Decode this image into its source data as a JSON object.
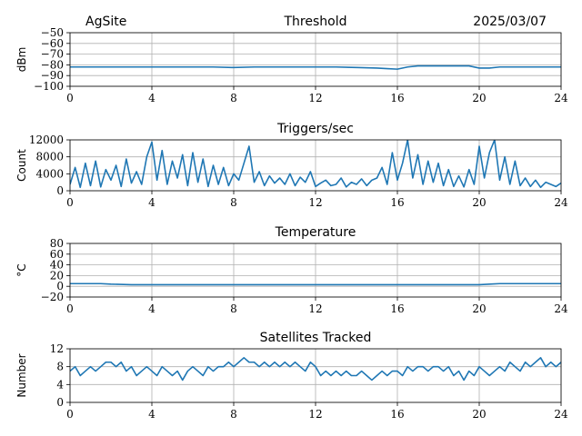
{
  "header": {
    "site": "AgSite",
    "date": "2025/03/07"
  },
  "style": {
    "series_color": "#1f77b4",
    "grid_color": "#b0b0b0"
  },
  "chart_data": [
    {
      "id": "threshold",
      "type": "line",
      "title": "Threshold",
      "ylabel": "dBm",
      "xlim": [
        0,
        24
      ],
      "ylim": [
        -100,
        -50
      ],
      "xticks": [
        0,
        4,
        8,
        12,
        16,
        20,
        24
      ],
      "yticks": [
        -100,
        -90,
        -80,
        -70,
        -60,
        -50
      ],
      "ytick_labels": [
        "−100",
        "−90",
        "−80",
        "−70",
        "−60",
        "−50"
      ],
      "grid": true,
      "x": [
        0,
        1,
        2,
        3,
        4,
        5,
        6,
        7,
        8,
        9,
        10,
        11,
        12,
        13,
        14,
        15,
        15.5,
        16,
        16.5,
        17,
        18,
        19,
        19.5,
        20,
        20.5,
        21,
        22,
        23,
        24
      ],
      "y": [
        -82,
        -82,
        -82,
        -82,
        -82,
        -82,
        -82,
        -82,
        -82.5,
        -82,
        -82,
        -82,
        -82,
        -82,
        -82.5,
        -83,
        -83.5,
        -84,
        -82,
        -81,
        -81,
        -81,
        -81,
        -83,
        -83,
        -82,
        -82,
        -82,
        -82
      ]
    },
    {
      "id": "triggers",
      "type": "line",
      "title": "Triggers/sec",
      "ylabel": "Count",
      "xlim": [
        0,
        24
      ],
      "ylim": [
        0,
        12000
      ],
      "xticks": [
        0,
        4,
        8,
        12,
        16,
        20,
        24
      ],
      "yticks": [
        0,
        4000,
        8000,
        12000
      ],
      "ytick_labels": [
        "0",
        "4000",
        "8000",
        "12000"
      ],
      "grid": true,
      "x": [
        0,
        0.25,
        0.5,
        0.75,
        1,
        1.25,
        1.5,
        1.75,
        2,
        2.25,
        2.5,
        2.75,
        3,
        3.25,
        3.5,
        3.75,
        4,
        4.25,
        4.5,
        4.75,
        5,
        5.25,
        5.5,
        5.75,
        6,
        6.25,
        6.5,
        6.75,
        7,
        7.25,
        7.5,
        7.75,
        8,
        8.25,
        8.5,
        8.75,
        9,
        9.25,
        9.5,
        9.75,
        10,
        10.25,
        10.5,
        10.75,
        11,
        11.25,
        11.5,
        11.75,
        12,
        12.25,
        12.5,
        12.75,
        13,
        13.25,
        13.5,
        13.75,
        14,
        14.25,
        14.5,
        14.75,
        15,
        15.25,
        15.5,
        15.75,
        16,
        16.25,
        16.5,
        16.75,
        17,
        17.25,
        17.5,
        17.75,
        18,
        18.25,
        18.5,
        18.75,
        19,
        19.25,
        19.5,
        19.75,
        20,
        20.25,
        20.5,
        20.75,
        21,
        21.25,
        21.5,
        21.75,
        22,
        22.25,
        22.5,
        22.75,
        23,
        23.25,
        23.5,
        23.75,
        24
      ],
      "y": [
        1500,
        5500,
        800,
        6500,
        1200,
        7000,
        900,
        5000,
        2500,
        6000,
        1000,
        7500,
        1800,
        4500,
        1500,
        8000,
        11500,
        2500,
        9500,
        1500,
        7000,
        3000,
        8500,
        1200,
        9000,
        2000,
        7500,
        1000,
        6000,
        1500,
        5500,
        1200,
        4000,
        2500,
        6500,
        10500,
        2000,
        4500,
        1200,
        3500,
        1800,
        3000,
        1500,
        4000,
        1200,
        3200,
        2000,
        4500,
        1000,
        1800,
        2500,
        1200,
        1500,
        3000,
        900,
        2000,
        1500,
        2800,
        1200,
        2500,
        3000,
        5500,
        1500,
        9000,
        2500,
        6500,
        12000,
        3000,
        8500,
        1500,
        7000,
        2000,
        6500,
        1200,
        5000,
        1000,
        3500,
        900,
        5000,
        1500,
        10500,
        3000,
        9000,
        12000,
        2500,
        8000,
        1500,
        7000,
        1200,
        3000,
        1000,
        2500,
        800,
        2000,
        1500,
        1000,
        1800
      ]
    },
    {
      "id": "temperature",
      "type": "line",
      "title": "Temperature",
      "ylabel": "°C",
      "xlim": [
        0,
        24
      ],
      "ylim": [
        -20,
        80
      ],
      "xticks": [
        0,
        4,
        8,
        12,
        16,
        20,
        24
      ],
      "yticks": [
        -20,
        0,
        20,
        40,
        60,
        80
      ],
      "ytick_labels": [
        "−20",
        "0",
        "20",
        "40",
        "60",
        "80"
      ],
      "grid": true,
      "x": [
        0,
        1,
        1.5,
        2,
        3,
        4,
        6,
        8,
        10,
        12,
        14,
        16,
        18,
        20,
        20.5,
        21,
        22,
        23,
        24
      ],
      "y": [
        5,
        5,
        5,
        4,
        3,
        3,
        3,
        3,
        3,
        3,
        3,
        3,
        3,
        3,
        4,
        5,
        5,
        5,
        5
      ]
    },
    {
      "id": "satellites",
      "type": "line",
      "title": "Satellites Tracked",
      "ylabel": "Number",
      "xlim": [
        0,
        24
      ],
      "ylim": [
        0,
        12
      ],
      "xticks": [
        0,
        4,
        8,
        12,
        16,
        20,
        24
      ],
      "yticks": [
        0,
        4,
        8,
        12
      ],
      "ytick_labels": [
        "0",
        "4",
        "8",
        "12"
      ],
      "grid": true,
      "x": [
        0,
        0.25,
        0.5,
        0.75,
        1,
        1.25,
        1.5,
        1.75,
        2,
        2.25,
        2.5,
        2.75,
        3,
        3.25,
        3.5,
        3.75,
        4,
        4.25,
        4.5,
        4.75,
        5,
        5.25,
        5.5,
        5.75,
        6,
        6.25,
        6.5,
        6.75,
        7,
        7.25,
        7.5,
        7.75,
        8,
        8.25,
        8.5,
        8.75,
        9,
        9.25,
        9.5,
        9.75,
        10,
        10.25,
        10.5,
        10.75,
        11,
        11.25,
        11.5,
        11.75,
        12,
        12.25,
        12.5,
        12.75,
        13,
        13.25,
        13.5,
        13.75,
        14,
        14.25,
        14.5,
        14.75,
        15,
        15.25,
        15.5,
        15.75,
        16,
        16.25,
        16.5,
        16.75,
        17,
        17.25,
        17.5,
        17.75,
        18,
        18.25,
        18.5,
        18.75,
        19,
        19.25,
        19.5,
        19.75,
        20,
        20.25,
        20.5,
        20.75,
        21,
        21.25,
        21.5,
        21.75,
        22,
        22.25,
        22.5,
        22.75,
        23,
        23.25,
        23.5,
        23.75,
        24
      ],
      "y": [
        7,
        8,
        6,
        7,
        8,
        7,
        8,
        9,
        9,
        8,
        9,
        7,
        8,
        6,
        7,
        8,
        7,
        6,
        8,
        7,
        6,
        7,
        5,
        7,
        8,
        7,
        6,
        8,
        7,
        8,
        8,
        9,
        8,
        9,
        10,
        9,
        9,
        8,
        9,
        8,
        9,
        8,
        9,
        8,
        9,
        8,
        7,
        9,
        8,
        6,
        7,
        6,
        7,
        6,
        7,
        6,
        6,
        7,
        6,
        5,
        6,
        7,
        6,
        7,
        7,
        6,
        8,
        7,
        8,
        8,
        7,
        8,
        8,
        7,
        8,
        6,
        7,
        5,
        7,
        6,
        8,
        7,
        6,
        7,
        8,
        7,
        9,
        8,
        7,
        9,
        8,
        9,
        10,
        8,
        9,
        8,
        9
      ]
    }
  ]
}
